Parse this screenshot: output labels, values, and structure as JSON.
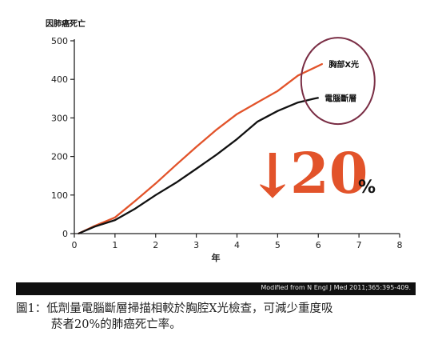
{
  "chart_data": {
    "type": "line",
    "title": "",
    "ylabel": "因肺癌死亡",
    "xlabel": "年",
    "ylim": [
      0,
      500
    ],
    "xlim": [
      0,
      8
    ],
    "y_ticks": [
      0,
      100,
      200,
      300,
      400,
      500
    ],
    "y_tick_labels": [
      "0",
      "100",
      "200",
      "300",
      "400",
      "500"
    ],
    "x_ticks": [
      0,
      1,
      2,
      3,
      4,
      5,
      6,
      7,
      8
    ],
    "x_tick_labels": [
      "0",
      "1",
      "2",
      "3",
      "4",
      "5",
      "6",
      "7",
      "8"
    ],
    "grid": false,
    "legend_placement": "right",
    "series": [
      {
        "name": "胸部X光",
        "color": "#e2532a",
        "x": [
          0.1,
          0.5,
          1.0,
          1.5,
          2.0,
          2.5,
          3.0,
          3.5,
          4.0,
          4.5,
          5.0,
          5.5,
          6.0,
          6.1
        ],
        "y": [
          0,
          20,
          42,
          85,
          130,
          178,
          225,
          270,
          310,
          340,
          370,
          410,
          435,
          440
        ]
      },
      {
        "name": "電腦斷層",
        "color": "#111111",
        "x": [
          0.1,
          0.5,
          1.0,
          1.5,
          2.0,
          2.5,
          3.0,
          3.5,
          4.0,
          4.5,
          5.0,
          5.5,
          5.9,
          6.0
        ],
        "y": [
          0,
          18,
          35,
          65,
          100,
          132,
          168,
          205,
          245,
          290,
          318,
          340,
          350,
          352
        ]
      }
    ],
    "annotation": {
      "arrow": "↓",
      "value": "20",
      "unit": "%",
      "color": "#e2532a"
    }
  },
  "source_note": "Modified from N Engl J Med 2011;365:395-409.",
  "caption": {
    "label": "圖1：",
    "line1": "低劑量電腦斷層掃描相較於胸腔X光檢查，可減少重度吸",
    "line2": "菸者20%的肺癌死亡率。"
  },
  "colors": {
    "ellipse": "#7a2e45",
    "axis": "#222222"
  }
}
